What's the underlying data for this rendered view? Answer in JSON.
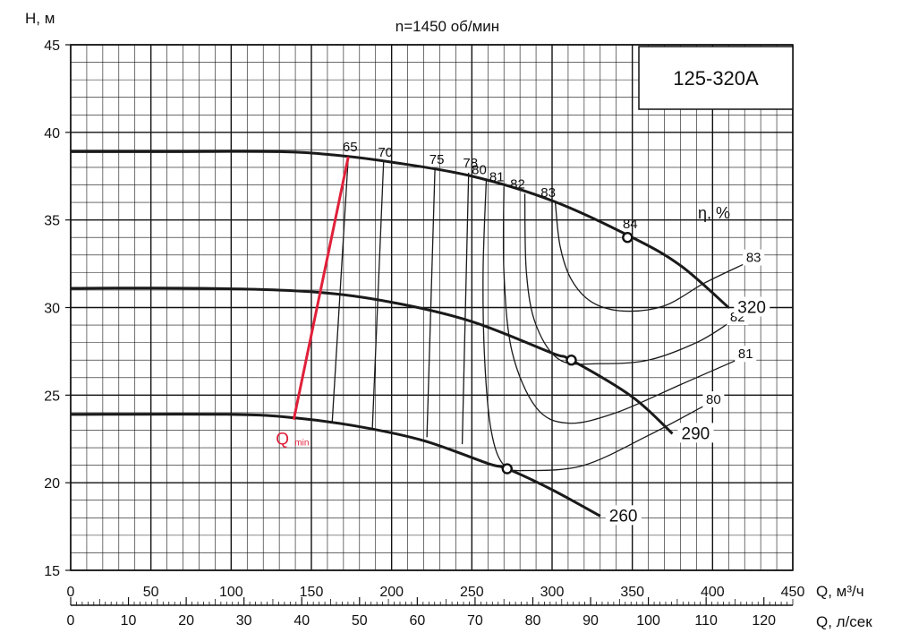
{
  "chart_data": {
    "type": "line",
    "title": "n=1450 об/мин",
    "model_label": "125-320A",
    "ylabel": "H, м",
    "xlabel": "Q, м³/ч",
    "x2label": "Q, л/сек",
    "ylim": [
      15,
      45
    ],
    "xlim": [
      0,
      450
    ],
    "grid": true,
    "y_ticks": [
      "15",
      "20",
      "25",
      "30",
      "35",
      "40",
      "45"
    ],
    "x_ticks": [
      "0",
      "50",
      "100",
      "150",
      "200",
      "250",
      "300",
      "350",
      "400",
      "450"
    ],
    "x2_ticks": [
      "0",
      "10",
      "20",
      "30",
      "40",
      "50",
      "60",
      "70",
      "80",
      "90",
      "100",
      "110",
      "120"
    ],
    "eta_label": "η, %",
    "qmin_label": "Q",
    "qmin_sub": "min",
    "series": [
      {
        "name": "320",
        "x": [
          0,
          60,
          130,
          165,
          200,
          250,
          300,
          350,
          380,
          410
        ],
        "y": [
          38.9,
          38.9,
          38.9,
          38.7,
          38.3,
          37.5,
          36.1,
          34.0,
          32.4,
          30.0
        ]
      },
      {
        "name": "290",
        "x": [
          0,
          80,
          150,
          200,
          250,
          300,
          312,
          350,
          375
        ],
        "y": [
          31.1,
          31.1,
          30.9,
          30.3,
          29.2,
          27.4,
          27.0,
          24.9,
          22.8
        ]
      },
      {
        "name": "260",
        "x": [
          0,
          100,
          140,
          180,
          220,
          260,
          272,
          300,
          330
        ],
        "y": [
          23.9,
          23.9,
          23.7,
          23.2,
          22.4,
          21.1,
          20.8,
          19.6,
          18.1
        ]
      }
    ],
    "efficiency_lines": [
      {
        "label": "65",
        "x": [
          163,
          173
        ],
        "y": [
          23.5,
          38.6
        ]
      },
      {
        "label": "70",
        "x": [
          188,
          195
        ],
        "y": [
          23.1,
          38.3
        ]
      },
      {
        "label": "75",
        "x": [
          222,
          227
        ],
        "y": [
          22.6,
          37.9
        ]
      },
      {
        "label": "78",
        "x": [
          244,
          248
        ],
        "y": [
          22.2,
          37.7
        ]
      }
    ],
    "efficiency_contours": [
      {
        "label": "80",
        "x": [
          259,
          257,
          258,
          262,
          270,
          285,
          320,
          360,
          395
        ],
        "y": [
          37.3,
          32,
          27,
          23,
          21,
          20.7,
          21,
          22.7,
          24.4
        ]
      },
      {
        "label": "81",
        "x": [
          270,
          270,
          275,
          290,
          310,
          340,
          380,
          415
        ],
        "y": [
          36.9,
          32,
          27.5,
          24.3,
          23.4,
          24,
          25.6,
          27.0
        ]
      },
      {
        "label": "82",
        "x": [
          283,
          284,
          290,
          305,
          330,
          360,
          390,
          410
        ],
        "y": [
          36.5,
          32,
          29,
          27,
          26.8,
          27,
          28,
          29.1
        ]
      },
      {
        "label": "83",
        "x": [
          302,
          305,
          312,
          325,
          345,
          370,
          395,
          420
        ],
        "y": [
          36.0,
          33.5,
          31.6,
          30.3,
          29.8,
          30.1,
          31.4,
          32.5
        ]
      }
    ],
    "bep_points": [
      {
        "label": "84",
        "x": 347,
        "y": 34.0
      },
      {
        "x": 312,
        "y": 27.0
      },
      {
        "x": 272,
        "y": 20.8
      }
    ],
    "qmin_line": {
      "x": [
        139,
        173
      ],
      "y": [
        23.6,
        38.6
      ],
      "color": "#e0203a"
    },
    "colors": {
      "curve": "#1a1a1a",
      "grid": "#111111",
      "qmin": "#e0203a"
    }
  }
}
